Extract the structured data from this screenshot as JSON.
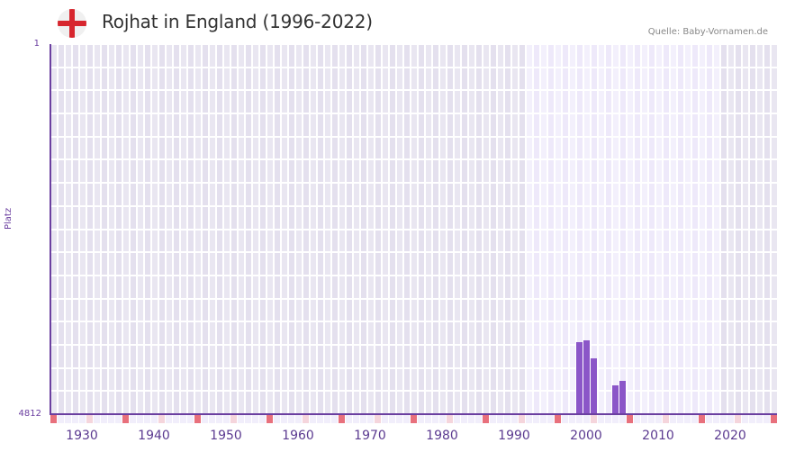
{
  "header": {
    "title": "Rojhat in England (1996-2022)",
    "flag_icon": "england-flag-icon",
    "source": "Quelle: Baby-Vornamen.de"
  },
  "axes": {
    "ylabel": "Platz",
    "ytick_top": "1",
    "ytick_bottom": "4812",
    "xticks": [
      "1930",
      "1940",
      "1950",
      "1960",
      "1970",
      "1980",
      "1990",
      "2000",
      "2010",
      "2020"
    ]
  },
  "colors": {
    "bar": "#8b56c8",
    "axis": "#6b3fa0",
    "bg_dark_a": "#e4e0ee",
    "bg_dark_b": "#e9e6f1",
    "bg_light_a": "#eee9fa",
    "bg_light_b": "#f3f0fc",
    "marker_red": "#e8707c",
    "marker_pink": "#f5d5dc",
    "marker_light": "#f1eefb"
  },
  "chart_data": {
    "type": "bar",
    "title": "Rojhat in England (1996-2022)",
    "xlabel": "",
    "ylabel": "Platz",
    "ylim": [
      4812,
      1
    ],
    "y_inverted": true,
    "x_range": [
      1928,
      2028
    ],
    "data_period": [
      1996,
      2022
    ],
    "x": [
      2001,
      2002,
      2003,
      2006,
      2007
    ],
    "values": [
      3875,
      3852,
      4086,
      4437,
      4378
    ],
    "xticks": [
      1930,
      1940,
      1950,
      1960,
      1970,
      1980,
      1990,
      2000,
      2010,
      2020
    ],
    "yticks": [
      1,
      4812
    ],
    "grid": true,
    "legend": null,
    "source": "Quelle: Baby-Vornamen.de"
  }
}
